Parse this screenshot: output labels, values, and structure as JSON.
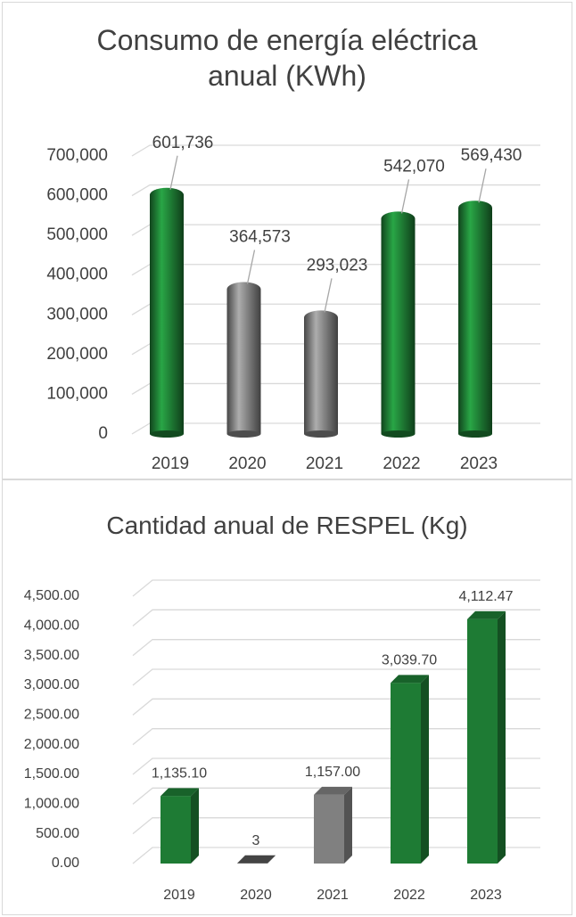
{
  "chart_data": [
    {
      "type": "bar",
      "bar_shape": "cylinder",
      "title": "Consumo de energía eléctrica anual (KWh)",
      "categories": [
        "2019",
        "2020",
        "2021",
        "2022",
        "2023"
      ],
      "values": [
        601736,
        364573,
        293023,
        542070,
        569430
      ],
      "value_labels": [
        "601,736",
        "364,573",
        "293,023",
        "542,070",
        "569,430"
      ],
      "colors": [
        "#1e7b34",
        "#808080",
        "#808080",
        "#1e7b34",
        "#1e7b34"
      ],
      "ylim": [
        0,
        700000
      ],
      "yticks": [
        0,
        {
          "value": 100000,
          "label": "100,000"
        },
        {
          "value": 200000,
          "label": "200,000"
        },
        {
          "value": 300000,
          "label": "300,000"
        },
        {
          "value": 400000,
          "label": "400,000"
        },
        {
          "value": 500000,
          "label": "500,000"
        },
        {
          "value": 600000,
          "label": "600,000"
        },
        {
          "value": 700000,
          "label": "700,000"
        }
      ],
      "grid": true
    },
    {
      "type": "bar",
      "bar_shape": "box",
      "title": "Cantidad anual de RESPEL (Kg)",
      "categories": [
        "2019",
        "2020",
        "2021",
        "2022",
        "2023"
      ],
      "values": [
        1135.1,
        3,
        1157,
        3039.7,
        4112.47
      ],
      "value_labels": [
        "1,135.10",
        "3",
        "1,157.00",
        "3,039.70",
        "4,112.47"
      ],
      "colors": [
        "#1e7b34",
        "#555555",
        "#808080",
        "#1e7b34",
        "#1e7b34"
      ],
      "ylim": [
        0,
        4500
      ],
      "yticks": [
        {
          "value": 0,
          "label": "0.00"
        },
        {
          "value": 500,
          "label": "500.00"
        },
        {
          "value": 1000,
          "label": "1,000.00"
        },
        {
          "value": 1500,
          "label": "1,500.00"
        },
        {
          "value": 2000,
          "label": "2,000.00"
        },
        {
          "value": 2500,
          "label": "2,500.00"
        },
        {
          "value": 3000,
          "label": "3,000.00"
        },
        {
          "value": 3500,
          "label": "3,500.00"
        },
        {
          "value": 4000,
          "label": "4,000.00"
        },
        {
          "value": 4500,
          "label": "4,500.00"
        }
      ],
      "grid": true
    }
  ]
}
